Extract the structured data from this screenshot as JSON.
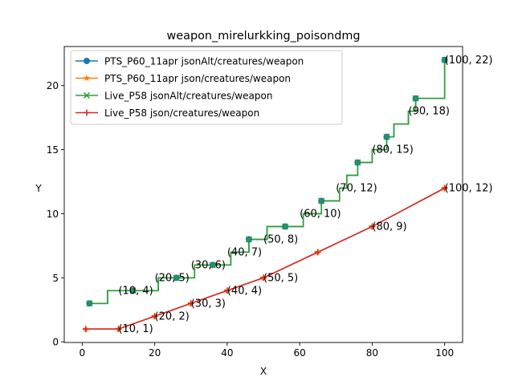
{
  "chart_data": {
    "type": "line",
    "title": "weapon_mirelurkking_poisondmg",
    "xlabel": "X",
    "ylabel": "Y",
    "xlim": [
      -4.95,
      104.95
    ],
    "ylim": [
      -0.05,
      23.05
    ],
    "x_ticks": [
      0,
      20,
      40,
      60,
      80,
      100
    ],
    "y_ticks": [
      0,
      5,
      10,
      15,
      20
    ],
    "legend_position": "upper-left",
    "series": [
      {
        "name": "PTS_P60_11apr jsonAlt/creatures/weapon",
        "color": "#1f77b4",
        "marker": "circle",
        "drawstyle": "steps",
        "x": [
          2,
          4,
          7,
          15,
          19,
          21,
          26,
          29,
          31,
          36,
          39,
          41,
          46,
          49,
          51,
          56,
          59,
          61,
          66,
          69,
          71,
          73,
          76,
          78,
          80,
          82,
          84,
          86,
          88,
          90,
          92,
          95,
          100
        ],
        "y": [
          3,
          3,
          4,
          4,
          4,
          5,
          5,
          5,
          6,
          6,
          6,
          7,
          8,
          8,
          9,
          9,
          9,
          10,
          11,
          11,
          12,
          13,
          14,
          14,
          15,
          15,
          16,
          17,
          17,
          18,
          19,
          19,
          22
        ]
      },
      {
        "name": "PTS_P60_11apr json/creatures/weapon",
        "color": "#ff7f0e",
        "marker": "star",
        "x": [
          1,
          10,
          20,
          30,
          40,
          50,
          65,
          80,
          100
        ],
        "y": [
          1,
          1,
          2,
          3,
          4,
          5,
          7,
          9,
          12
        ]
      },
      {
        "name": "Live_P58 jsonAlt/creatures/weapon",
        "color": "#2ca02c",
        "marker": "x",
        "drawstyle": "steps",
        "x": [
          2,
          4,
          7,
          15,
          19,
          21,
          26,
          29,
          31,
          36,
          39,
          41,
          46,
          49,
          51,
          56,
          59,
          61,
          66,
          69,
          71,
          73,
          76,
          78,
          80,
          82,
          84,
          86,
          88,
          90,
          92,
          95,
          100
        ],
        "y": [
          3,
          3,
          4,
          4,
          4,
          5,
          5,
          5,
          6,
          6,
          6,
          7,
          8,
          8,
          9,
          9,
          9,
          10,
          11,
          11,
          12,
          13,
          14,
          14,
          15,
          15,
          16,
          17,
          17,
          18,
          19,
          19,
          22
        ]
      },
      {
        "name": "Live_P58 json/creatures/weapon",
        "color": "#d62728",
        "marker": "plus",
        "x": [
          1,
          10,
          20,
          30,
          40,
          50,
          65,
          80,
          100
        ],
        "y": [
          1,
          1,
          2,
          3,
          4,
          5,
          7,
          9,
          12
        ]
      }
    ],
    "marker_points": [
      {
        "x": 2,
        "y": 3
      },
      {
        "x": 14,
        "y": 4
      },
      {
        "x": 26,
        "y": 5
      },
      {
        "x": 36,
        "y": 6
      },
      {
        "x": 46,
        "y": 8
      },
      {
        "x": 56,
        "y": 9
      },
      {
        "x": 66,
        "y": 11
      },
      {
        "x": 76,
        "y": 14
      },
      {
        "x": 84,
        "y": 16
      },
      {
        "x": 92,
        "y": 19
      },
      {
        "x": 100,
        "y": 22
      }
    ],
    "annotations": [
      {
        "text": "(10, 4)",
        "x": 10,
        "y": 4
      },
      {
        "text": "(20, 5)",
        "x": 20,
        "y": 5
      },
      {
        "text": "(30, 6)",
        "x": 30,
        "y": 6
      },
      {
        "text": "(40, 7)",
        "x": 40,
        "y": 7
      },
      {
        "text": "(50, 8)",
        "x": 50,
        "y": 8
      },
      {
        "text": "(60, 10)",
        "x": 60,
        "y": 10
      },
      {
        "text": "(70, 12)",
        "x": 70,
        "y": 12
      },
      {
        "text": "(80, 15)",
        "x": 80,
        "y": 15
      },
      {
        "text": "(90, 18)",
        "x": 90,
        "y": 18
      },
      {
        "text": "(100, 22)",
        "x": 100,
        "y": 22
      },
      {
        "text": "(10, 1)",
        "x": 10,
        "y": 1
      },
      {
        "text": "(20, 2)",
        "x": 20,
        "y": 2
      },
      {
        "text": "(30, 3)",
        "x": 30,
        "y": 3
      },
      {
        "text": "(40, 4)",
        "x": 40,
        "y": 4
      },
      {
        "text": "(50, 5)",
        "x": 50,
        "y": 5
      },
      {
        "text": "(80, 9)",
        "x": 80,
        "y": 9
      },
      {
        "text": "(100, 12)",
        "x": 100,
        "y": 12
      }
    ]
  }
}
